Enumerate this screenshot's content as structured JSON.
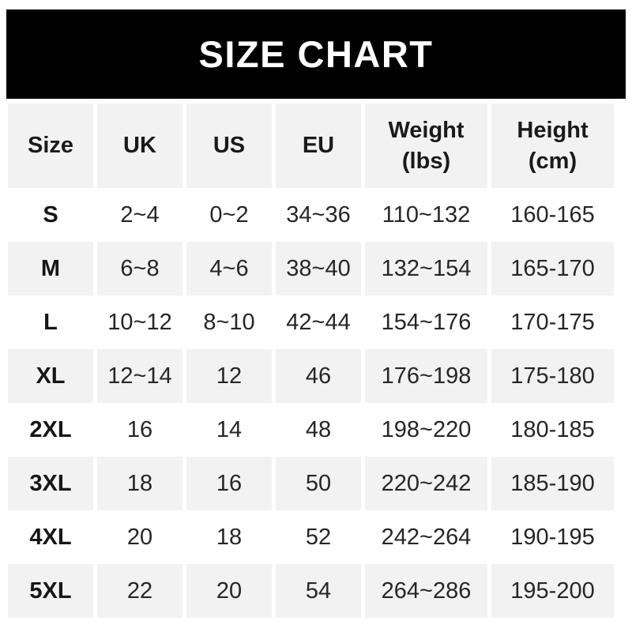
{
  "banner": {
    "title": "SIZE CHART"
  },
  "colors": {
    "banner_bg": "#010101",
    "banner_text": "#ffffff",
    "row_bg": "#ffffff",
    "row_alt_bg": "#f2f2f2",
    "header_bg": "#f2f2f2",
    "text": "#262626",
    "bold_text": "#161616"
  },
  "chart_data": {
    "type": "table",
    "title": "SIZE CHART",
    "columns": [
      {
        "id": "size",
        "line1": "Size"
      },
      {
        "id": "uk",
        "line1": "UK"
      },
      {
        "id": "us",
        "line1": "US"
      },
      {
        "id": "eu",
        "line1": "EU"
      },
      {
        "id": "weight",
        "line1": "Weight",
        "line2": "(lbs)"
      },
      {
        "id": "height",
        "line1": "Height",
        "line2": "(cm)"
      }
    ],
    "rows": [
      {
        "size": "S",
        "uk": "2~4",
        "us": "0~2",
        "eu": "34~36",
        "weight": "110~132",
        "height": "160-165"
      },
      {
        "size": "M",
        "uk": "6~8",
        "us": "4~6",
        "eu": "38~40",
        "weight": "132~154",
        "height": "165-170"
      },
      {
        "size": "L",
        "uk": "10~12",
        "us": "8~10",
        "eu": "42~44",
        "weight": "154~176",
        "height": "170-175"
      },
      {
        "size": "XL",
        "uk": "12~14",
        "us": "12",
        "eu": "46",
        "weight": "176~198",
        "height": "175-180"
      },
      {
        "size": "2XL",
        "uk": "16",
        "us": "14",
        "eu": "48",
        "weight": "198~220",
        "height": "180-185"
      },
      {
        "size": "3XL",
        "uk": "18",
        "us": "16",
        "eu": "50",
        "weight": "220~242",
        "height": "185-190"
      },
      {
        "size": "4XL",
        "uk": "20",
        "us": "18",
        "eu": "52",
        "weight": "242~264",
        "height": "190-195"
      },
      {
        "size": "5XL",
        "uk": "22",
        "us": "20",
        "eu": "54",
        "weight": "264~286",
        "height": "195-200"
      }
    ]
  }
}
